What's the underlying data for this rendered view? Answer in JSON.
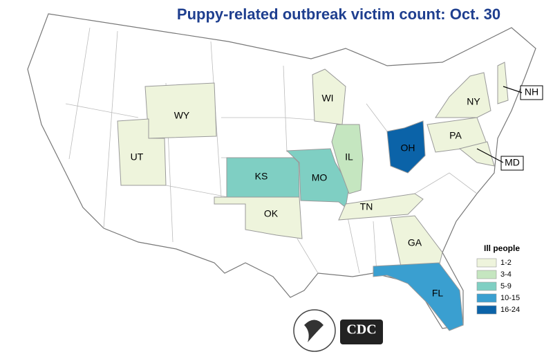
{
  "title": "Puppy-related outbreak victim count: Oct. 30",
  "states": [
    {
      "label": "WY",
      "color": "#eef4dc"
    },
    {
      "label": "UT",
      "color": "#eef4dc"
    },
    {
      "label": "KS",
      "color": "#7fcfc3"
    },
    {
      "label": "MO",
      "color": "#7fcfc3"
    },
    {
      "label": "IL",
      "color": "#c5e6c0"
    },
    {
      "label": "OK",
      "color": "#eef4dc"
    },
    {
      "label": "WI",
      "color": "#eef4dc"
    },
    {
      "label": "OH",
      "color": "#0b63a8"
    },
    {
      "label": "TN",
      "color": "#eef4dc"
    },
    {
      "label": "GA",
      "color": "#eef4dc"
    },
    {
      "label": "FL",
      "color": "#3a9fd0"
    },
    {
      "label": "PA",
      "color": "#eef4dc"
    },
    {
      "label": "NY",
      "color": "#eef4dc"
    },
    {
      "label": "NH",
      "color": "#eef4dc"
    },
    {
      "label": "MD",
      "color": "#eef4dc"
    }
  ],
  "legend": {
    "title": "Ill people",
    "items": [
      {
        "label": "1-2",
        "color": "#eef4dc"
      },
      {
        "label": "3-4",
        "color": "#c5e6c0"
      },
      {
        "label": "5-9",
        "color": "#7fcfc3"
      },
      {
        "label": "10-15",
        "color": "#3a9fd0"
      },
      {
        "label": "16-24",
        "color": "#0b63a8"
      }
    ]
  },
  "logos": {
    "cdc": "CDC"
  }
}
